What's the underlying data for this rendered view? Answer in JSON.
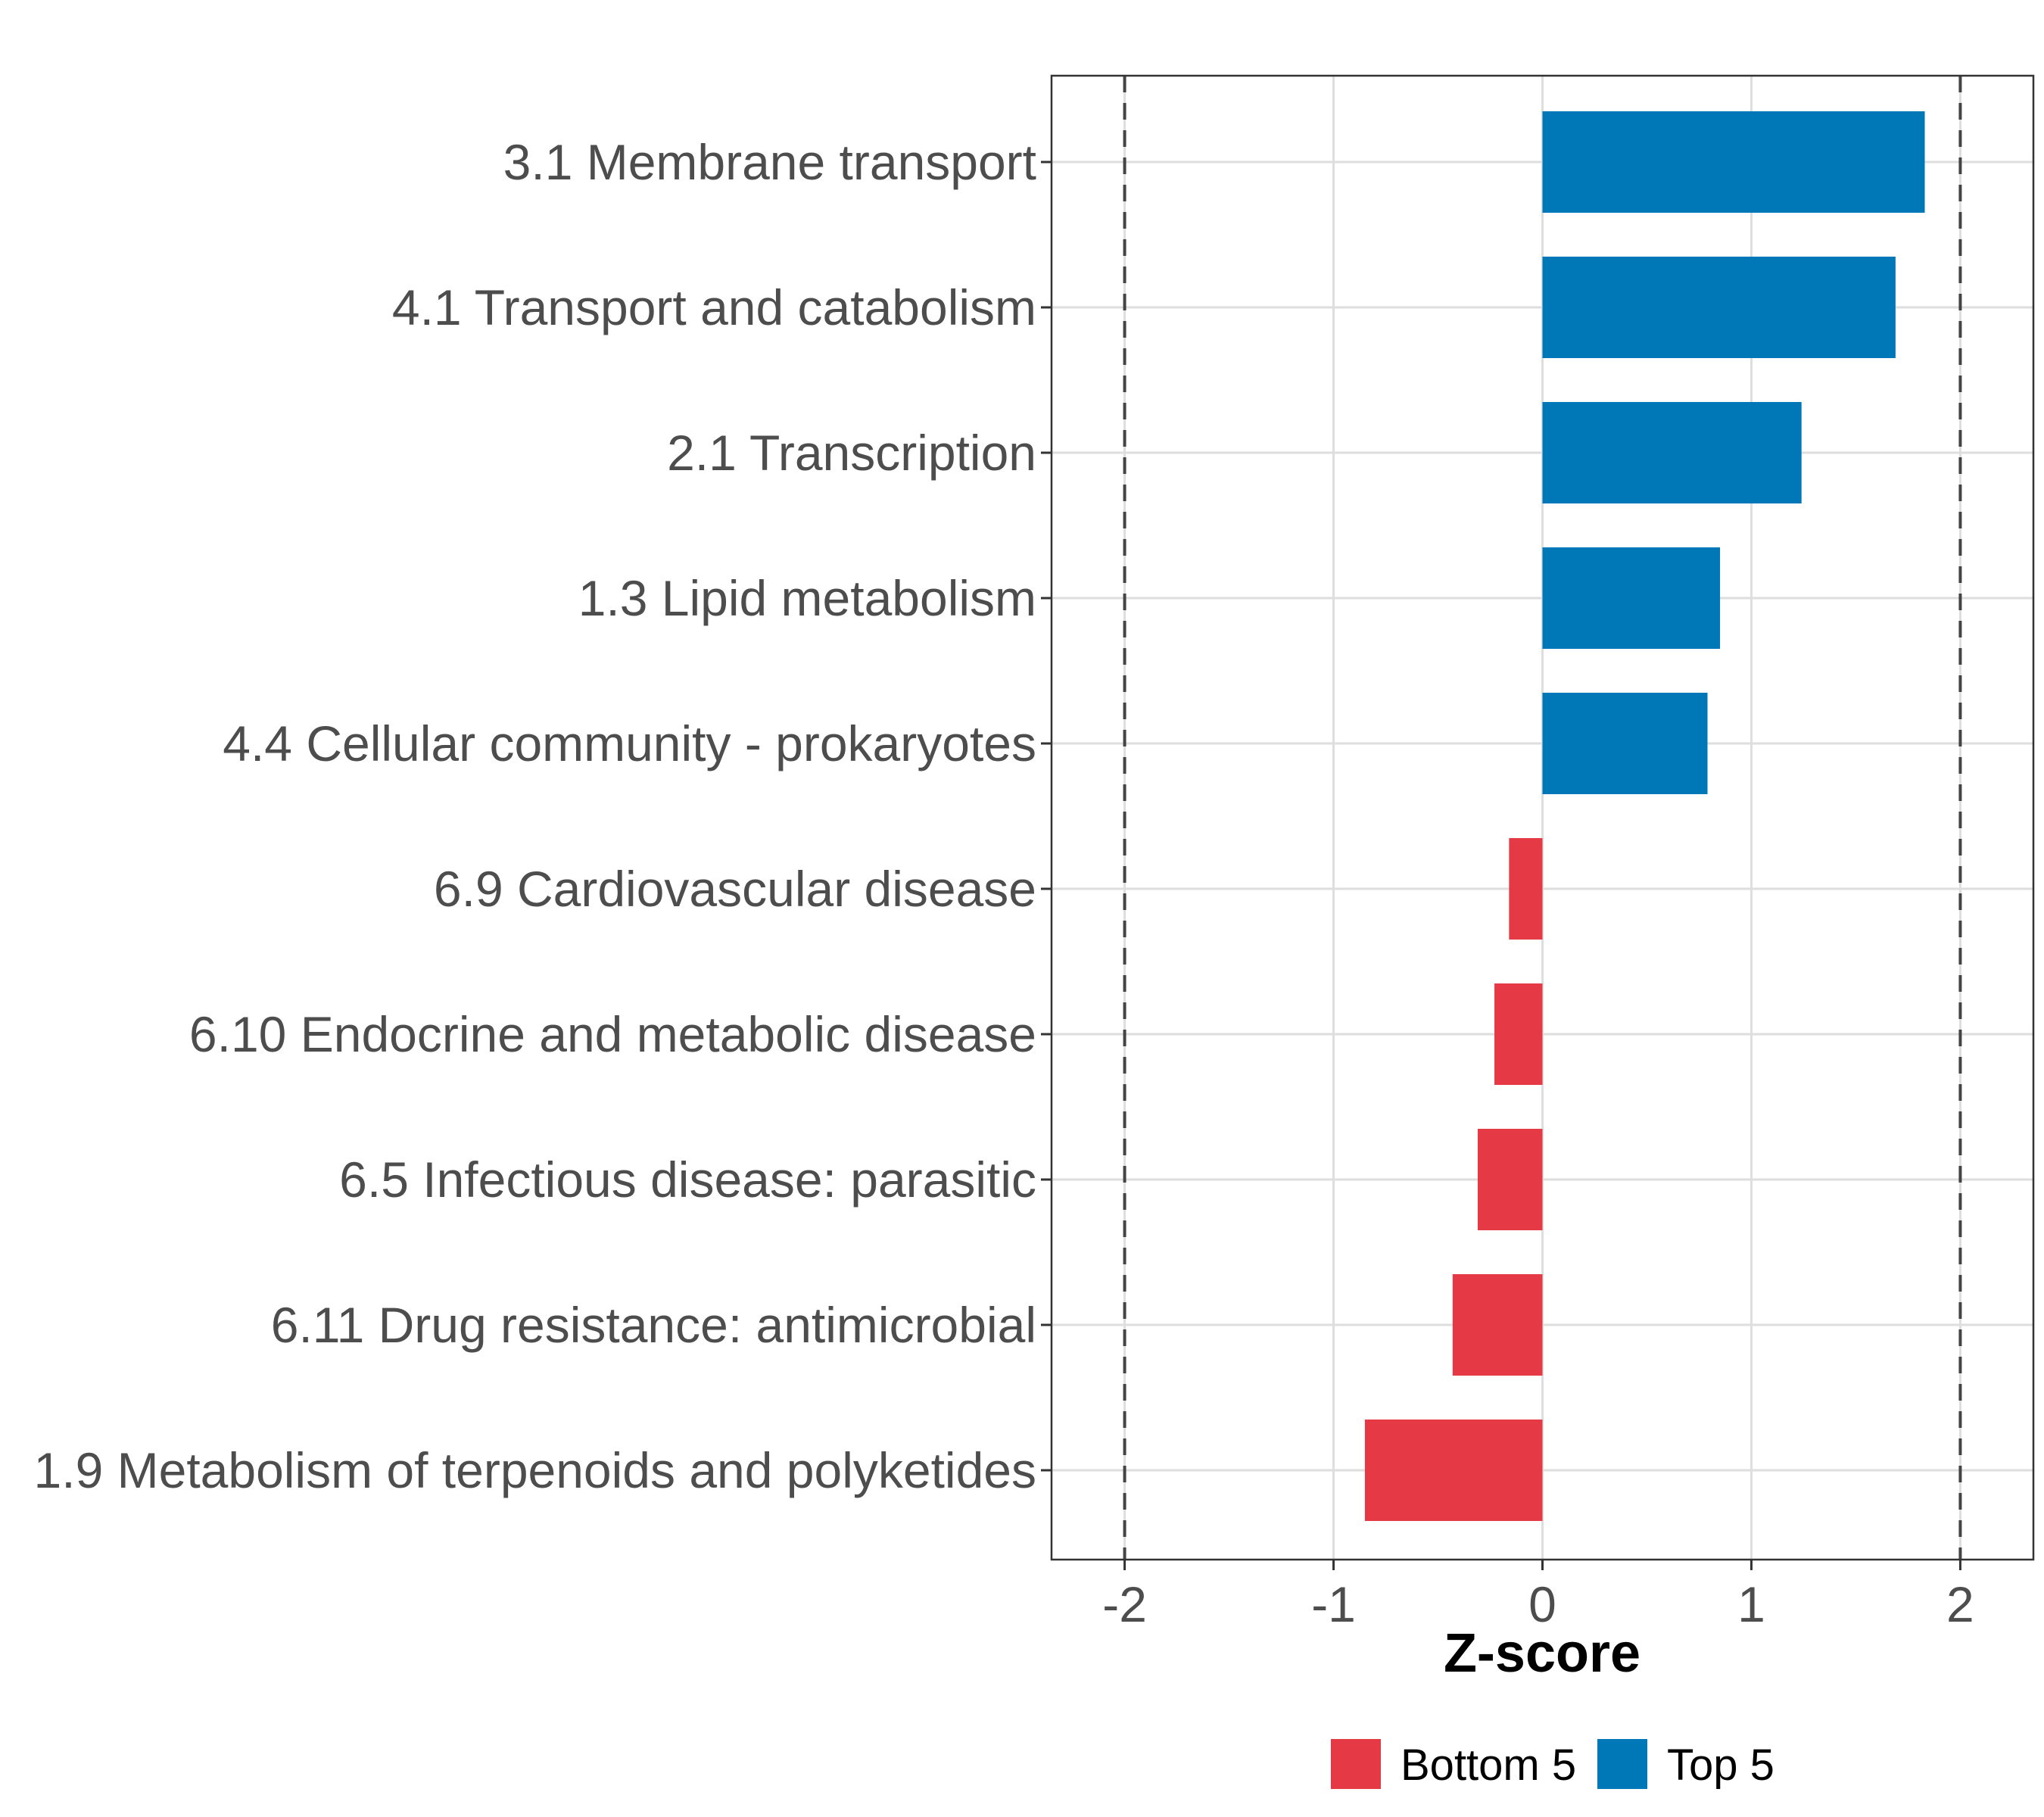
{
  "chart_data": {
    "type": "bar",
    "orientation": "horizontal",
    "title": "",
    "xlabel": "Z-score",
    "ylabel": "",
    "xlim": [
      -2.35,
      2.35
    ],
    "x_ticks": [
      -2,
      -1,
      0,
      1,
      2
    ],
    "x_tick_labels": [
      "-2",
      "-1",
      "0",
      "1",
      "2"
    ],
    "reference_lines": [
      -2,
      2
    ],
    "grid": true,
    "legend_position": "bottom",
    "categories": [
      "3.1 Membrane transport",
      "4.1 Transport and catabolism",
      "2.1 Transcription",
      "1.3 Lipid metabolism",
      "4.4 Cellular community - prokaryotes",
      "6.9 Cardiovascular disease",
      "6.10 Endocrine and metabolic disease",
      "6.5 Infectious disease: parasitic",
      "6.11 Drug resistance: antimicrobial",
      "1.9 Metabolism of terpenoids and polyketides"
    ],
    "values": [
      1.83,
      1.69,
      1.24,
      0.85,
      0.79,
      -0.16,
      -0.23,
      -0.31,
      -0.43,
      -0.85
    ],
    "groups": [
      "Top 5",
      "Top 5",
      "Top 5",
      "Top 5",
      "Top 5",
      "Bottom 5",
      "Bottom 5",
      "Bottom 5",
      "Bottom 5",
      "Bottom 5"
    ],
    "legend": [
      {
        "name": "Bottom 5",
        "color": "#e63946"
      },
      {
        "name": "Top 5",
        "color": "#0077b6"
      }
    ]
  }
}
